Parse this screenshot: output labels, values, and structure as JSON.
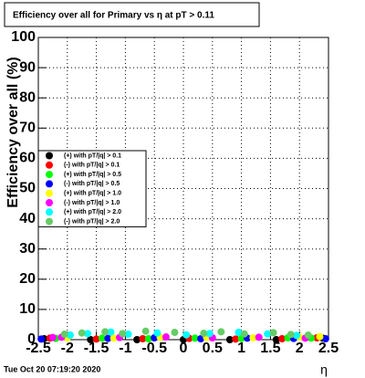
{
  "chart_data": {
    "type": "scatter",
    "title": "Efficiency over all for Primary vs   η at pT > 0.11",
    "y_label": "Efficiency over all (%)",
    "x_label": "η",
    "timestamp": "Tue Oct 20 07:19:20 2020",
    "xlim": [
      -2.5,
      2.5
    ],
    "ylim": [
      0,
      100
    ],
    "xticks": [
      -2.5,
      -2,
      -1.5,
      -1,
      -0.5,
      0,
      0.5,
      1,
      1.5,
      2,
      2.5
    ],
    "yticks": [
      0,
      10,
      20,
      30,
      40,
      50,
      60,
      70,
      80,
      90,
      100
    ],
    "grid": true,
    "legend": "left",
    "series": [
      {
        "name": "(+) with pT/|q| > 0.1",
        "color": "#000000",
        "x": [
          -2.4,
          -1.6,
          -0.8,
          0.0,
          0.8,
          1.6,
          2.4
        ],
        "values": [
          0.3,
          0.0,
          0.0,
          0.0,
          0.0,
          0.0,
          0.5
        ]
      },
      {
        "name": "(-) with pT/|q| > 0.1",
        "color": "#ff0000",
        "x": [
          -2.3,
          -1.5,
          -0.7,
          0.1,
          0.9,
          1.7,
          2.3
        ],
        "values": [
          0.5,
          0.2,
          0.3,
          0.4,
          0.2,
          0.3,
          0.6
        ]
      },
      {
        "name": "(+) with pT/|q| > 0.5",
        "color": "#00ff00",
        "x": [
          -2.2,
          -1.4,
          -0.6,
          0.2,
          1.0,
          1.8,
          2.2
        ],
        "values": [
          0.4,
          0.5,
          0.3,
          0.5,
          0.4,
          0.6,
          0.5
        ]
      },
      {
        "name": "(-) with pT/|q| > 0.5",
        "color": "#0000ff",
        "x": [
          -2.45,
          -1.3,
          -0.5,
          0.3,
          1.1,
          1.9,
          2.45
        ],
        "values": [
          0.2,
          0.4,
          0.6,
          0.3,
          0.5,
          0.4,
          0.3
        ]
      },
      {
        "name": "(+) with pT/|q| > 1.0",
        "color": "#ffff00",
        "x": [
          -2.0,
          -1.2,
          -0.4,
          0.4,
          1.2,
          2.0,
          2.35
        ],
        "values": [
          0.6,
          0.5,
          0.8,
          0.7,
          0.6,
          0.9,
          1.0
        ]
      },
      {
        "name": "(-) with pT/|q| > 1.0",
        "color": "#ff00ff",
        "x": [
          -2.1,
          -1.1,
          -0.3,
          0.5,
          1.3,
          2.1,
          -2.25
        ],
        "values": [
          0.8,
          0.7,
          0.9,
          0.6,
          0.8,
          0.5,
          0.7
        ]
      },
      {
        "name": "(+) with pT/|q| > 2.0",
        "color": "#00ffff",
        "x": [
          -1.95,
          -1.65,
          -1.25,
          -0.95,
          -0.45,
          0.05,
          0.45,
          0.95,
          1.45,
          1.95
        ],
        "values": [
          1.5,
          2.0,
          2.5,
          1.8,
          2.2,
          1.6,
          2.0,
          2.4,
          1.9,
          1.4
        ]
      },
      {
        "name": "(-) with pT/|q| > 2.0",
        "color": "#66cc66",
        "x": [
          -2.05,
          -1.75,
          -1.35,
          -1.05,
          -0.65,
          -0.15,
          0.35,
          0.65,
          1.05,
          1.55,
          1.85,
          2.15
        ],
        "values": [
          1.8,
          2.2,
          2.6,
          2.0,
          2.8,
          2.4,
          2.1,
          2.6,
          1.9,
          2.3,
          1.7,
          1.5
        ]
      }
    ]
  }
}
